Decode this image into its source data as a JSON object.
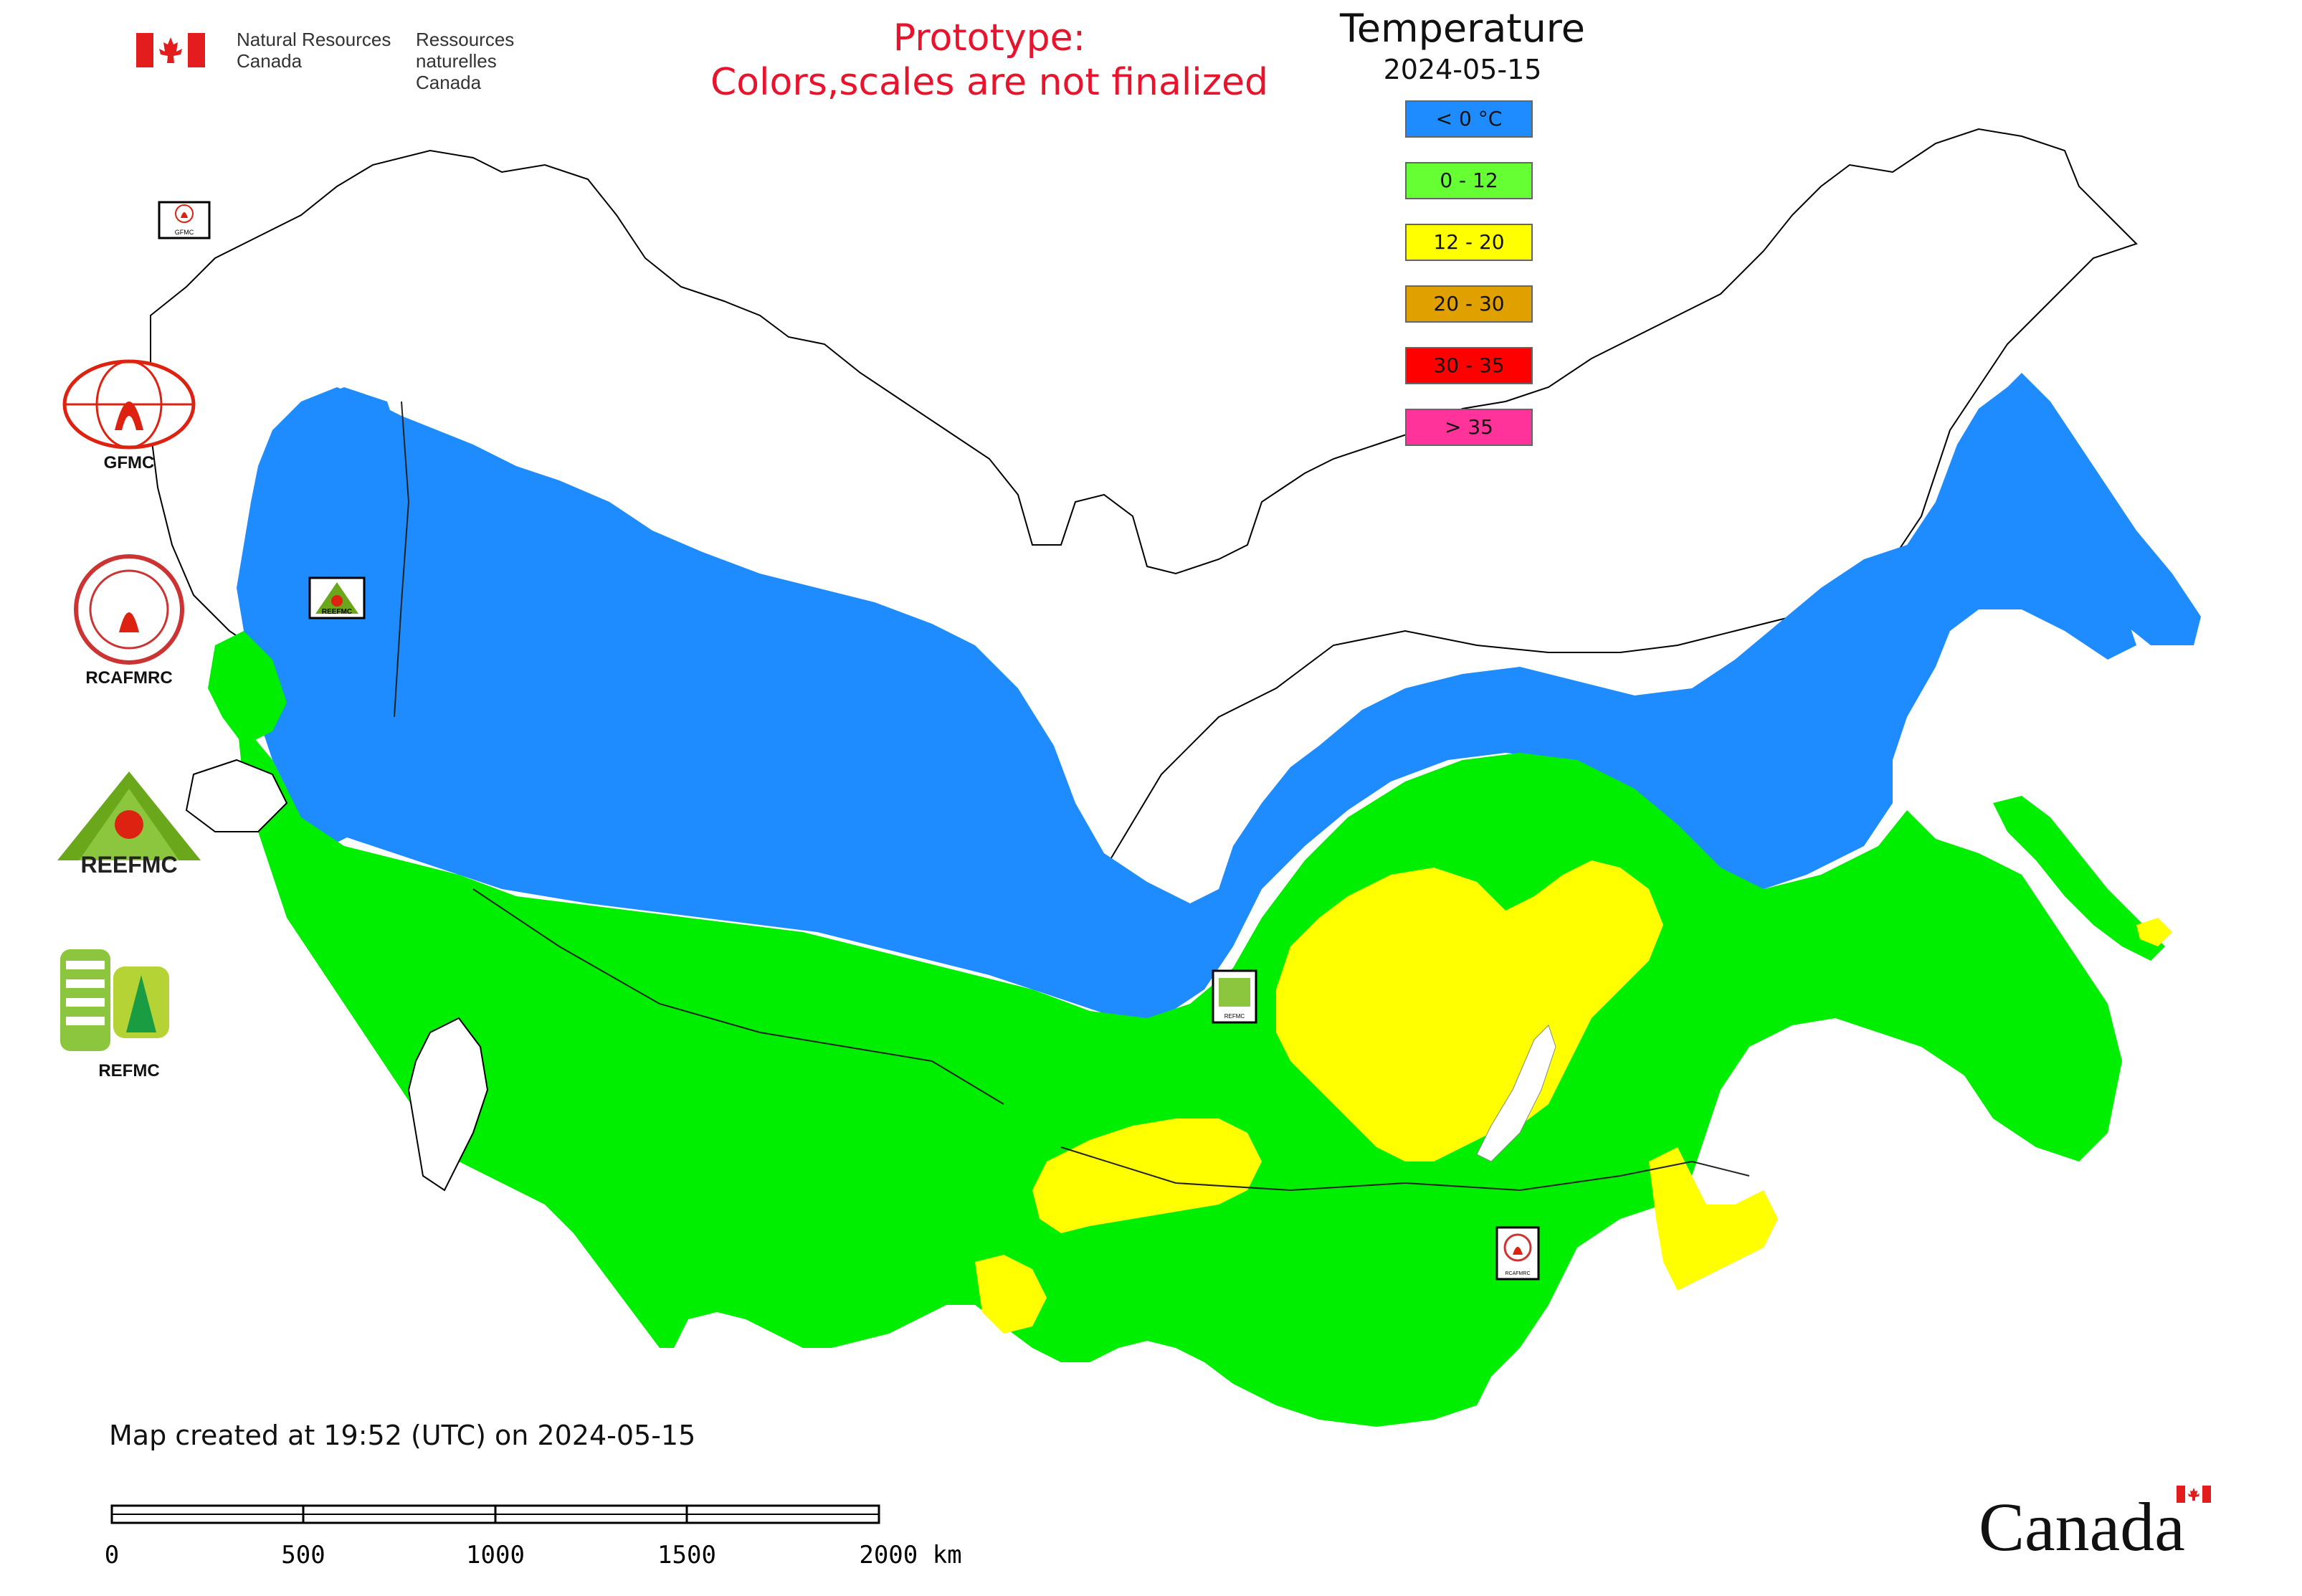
{
  "header": {
    "goc_en_line1": "Natural Resources",
    "goc_en_line2": "Canada",
    "goc_fr_line1": "Ressources naturelles",
    "goc_fr_line2": "Canada",
    "notice_line1": "Prototype:",
    "notice_line2": "Colors,scales are not finalized"
  },
  "legend": {
    "title": "Temperature",
    "date": "2024-05-15",
    "items": [
      {
        "label": "< 0 °C",
        "color": "#1e8cff"
      },
      {
        "label": "0 - 12",
        "color": "#66ff33"
      },
      {
        "label": "12 - 20",
        "color": "#ffff00"
      },
      {
        "label": "20 - 30",
        "color": "#e0a000"
      },
      {
        "label": "30 - 35",
        "color": "#ff0000"
      },
      {
        "label": "> 35",
        "color": "#ff3399"
      }
    ]
  },
  "logos": {
    "gfmc": "GFMC",
    "rcafmrc": "RCAFMRC",
    "reefmc": "REEFMC",
    "reefmc_small": "REEFMC",
    "refmc": "REFMC",
    "map_gfmc": "GFMC",
    "map_reefmc": "REEFMC",
    "map_refmc": "REFMC",
    "map_rcafmrc": "RCAFMRC"
  },
  "footer": {
    "created_note": "Map created at 19:52 (UTC) on 2024-05-15",
    "scale_ticks": [
      "0",
      "500",
      "1000",
      "1500",
      "2000 km"
    ],
    "wordmark": "Canada"
  },
  "colors": {
    "cold": "#1e8cff",
    "cool": "#00ee00",
    "warm": "#ffff00",
    "notice": "#e8132d"
  }
}
